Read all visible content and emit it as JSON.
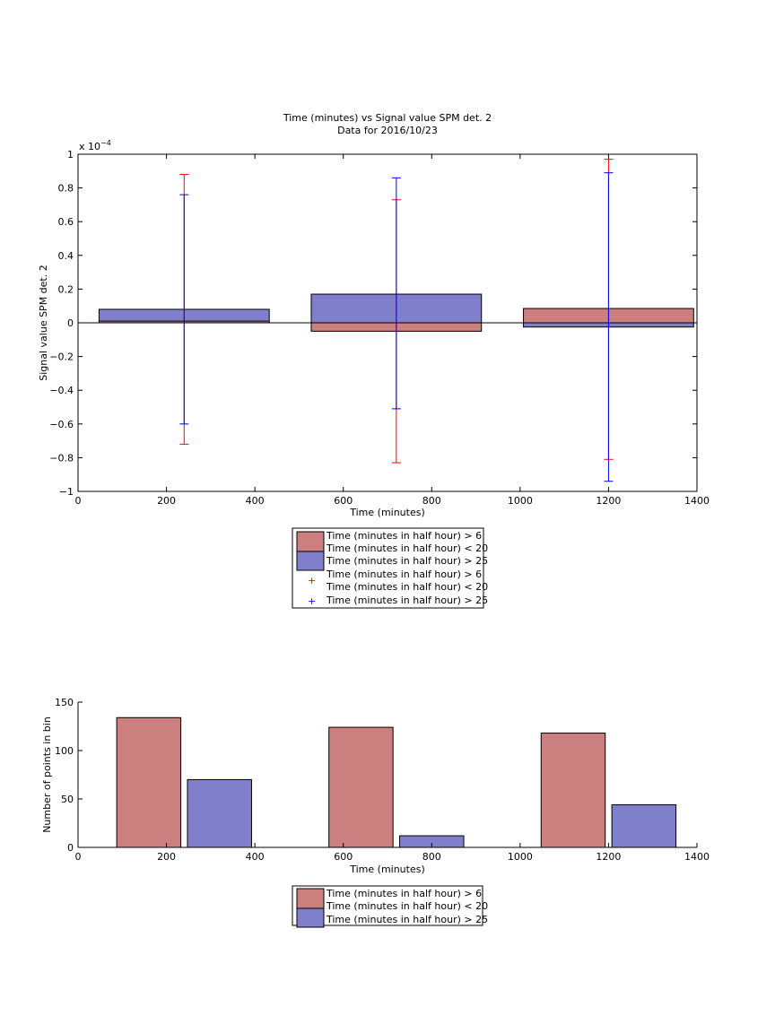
{
  "chart_data": [
    {
      "type": "bar",
      "title": "Time (minutes) vs Signal value SPM det. 2",
      "subtitle": "Data for 2016/10/23",
      "xlabel": "Time (minutes)",
      "ylabel": "Signal value SPM det. 2",
      "exponent_label": "x 10",
      "exponent_power": "−4",
      "xlim": [
        0,
        1400
      ],
      "ylim": [
        -1,
        1
      ],
      "xticks": [
        "0",
        "200",
        "400",
        "600",
        "800",
        "1000",
        "1200",
        "1400"
      ],
      "yticks": [
        "−1",
        "−0.8",
        "−0.6",
        "−0.4",
        "−0.2",
        "0",
        "0.2",
        "0.4",
        "0.6",
        "0.8",
        "1"
      ],
      "xtick_values": [
        0,
        200,
        400,
        600,
        800,
        1000,
        1200,
        1400
      ],
      "ytick_values": [
        -1,
        -0.8,
        -0.6,
        -0.4,
        -0.2,
        0,
        0.2,
        0.4,
        0.6,
        0.8,
        1
      ],
      "bar_width": 385,
      "categories": [
        240,
        720,
        1200
      ],
      "series": [
        {
          "name": "Time (minutes in half hour) > 6",
          "name2": "Time (minutes in half hour) < 20",
          "color": "#cc7f7f",
          "values": [
            0.01,
            -0.05,
            0.085
          ]
        },
        {
          "name": "Time (minutes in half hour) > 25",
          "color": "#7f7fcc",
          "values": [
            0.08,
            0.17,
            -0.025
          ]
        }
      ],
      "errorbars": [
        {
          "name": "Time (minutes in half hour) > 6",
          "name2": "Time (minutes in half hour) < 20",
          "color": "#ff0000",
          "x": [
            240,
            720,
            1200
          ],
          "low": [
            -0.72,
            -0.83,
            -0.81
          ],
          "high": [
            0.88,
            0.73,
            0.97
          ]
        },
        {
          "name": "Time (minutes in half hour) > 25",
          "color": "#0000ff",
          "x": [
            240,
            720,
            1200
          ],
          "low": [
            -0.6,
            -0.51,
            -0.94
          ],
          "high": [
            0.76,
            0.86,
            0.89
          ]
        }
      ],
      "legend": {
        "placement": "below",
        "entries": [
          "Time (minutes in half hour) > 6",
          "Time (minutes in half hour) < 20",
          "Time (minutes in half hour) > 25",
          "Time (minutes in half hour) > 6",
          "Time (minutes in half hour) < 20",
          "Time (minutes in half hour) > 25"
        ]
      }
    },
    {
      "type": "bar",
      "xlabel": "Time (minutes)",
      "ylabel": "Number of points in bin",
      "xlim": [
        0,
        1400
      ],
      "ylim": [
        0,
        150
      ],
      "xticks": [
        "0",
        "200",
        "400",
        "600",
        "800",
        "1000",
        "1200",
        "1400"
      ],
      "yticks": [
        "0",
        "50",
        "100",
        "150"
      ],
      "xtick_values": [
        0,
        200,
        400,
        600,
        800,
        1000,
        1200,
        1400
      ],
      "ytick_values": [
        0,
        50,
        100,
        150
      ],
      "bar_width": 145,
      "series": [
        {
          "name": "Time (minutes in half hour) > 6",
          "name2": "Time (minutes in half hour) < 20",
          "color": "#cc7f7f",
          "x": [
            160,
            640,
            1120
          ],
          "values": [
            134,
            124,
            118
          ]
        },
        {
          "name": "Time (minutes in half hour) > 25",
          "color": "#7f7fcc",
          "x": [
            320,
            800,
            1280
          ],
          "values": [
            70,
            12,
            44
          ]
        }
      ],
      "legend": {
        "placement": "below",
        "entries": [
          "Time (minutes in half hour) > 6",
          "Time (minutes in half hour) < 20",
          "Time (minutes in half hour) > 25"
        ]
      }
    }
  ]
}
